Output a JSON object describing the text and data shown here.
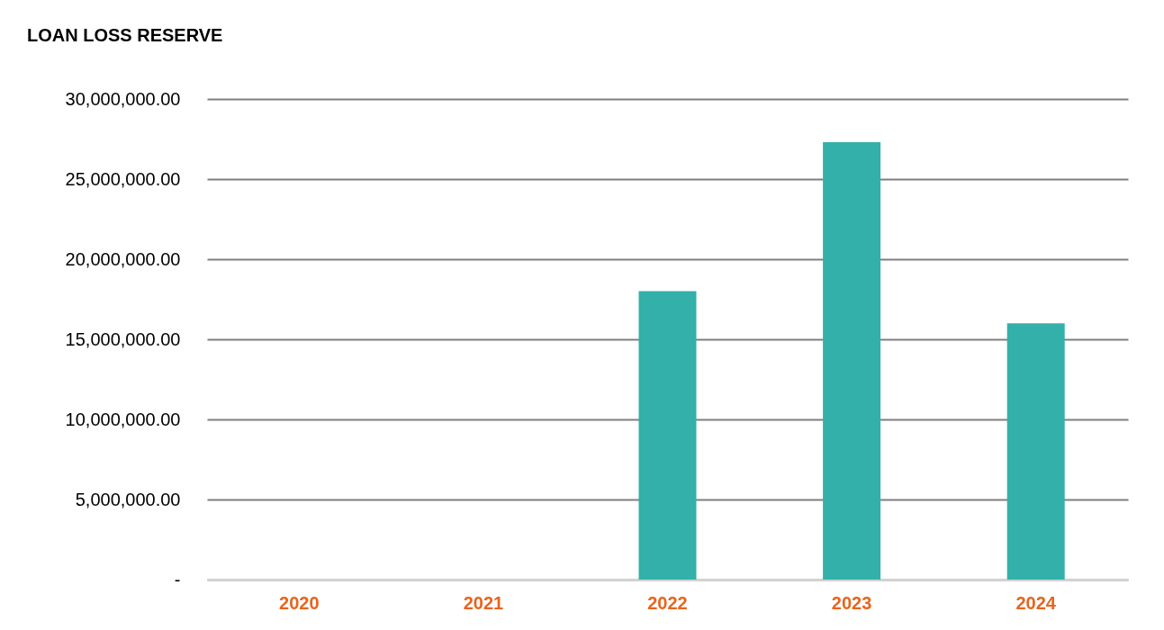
{
  "chart_data": {
    "type": "bar",
    "title": "LOAN LOSS RESERVE",
    "categories": [
      "2020",
      "2021",
      "2022",
      "2023",
      "2024"
    ],
    "values": [
      0,
      0,
      18000000,
      27300000,
      16000000
    ],
    "color": "#32b0a9",
    "ylim": [
      0,
      30000000
    ],
    "yticks": [
      {
        "value": 0,
        "label": "-"
      },
      {
        "value": 5000000,
        "label": "5,000,000.00"
      },
      {
        "value": 10000000,
        "label": "10,000,000.00"
      },
      {
        "value": 15000000,
        "label": "15,000,000.00"
      },
      {
        "value": 20000000,
        "label": "20,000,000.00"
      },
      {
        "value": 25000000,
        "label": "25,000,000.00"
      },
      {
        "value": 30000000,
        "label": "30,000,000.00"
      }
    ],
    "grid": "y"
  }
}
